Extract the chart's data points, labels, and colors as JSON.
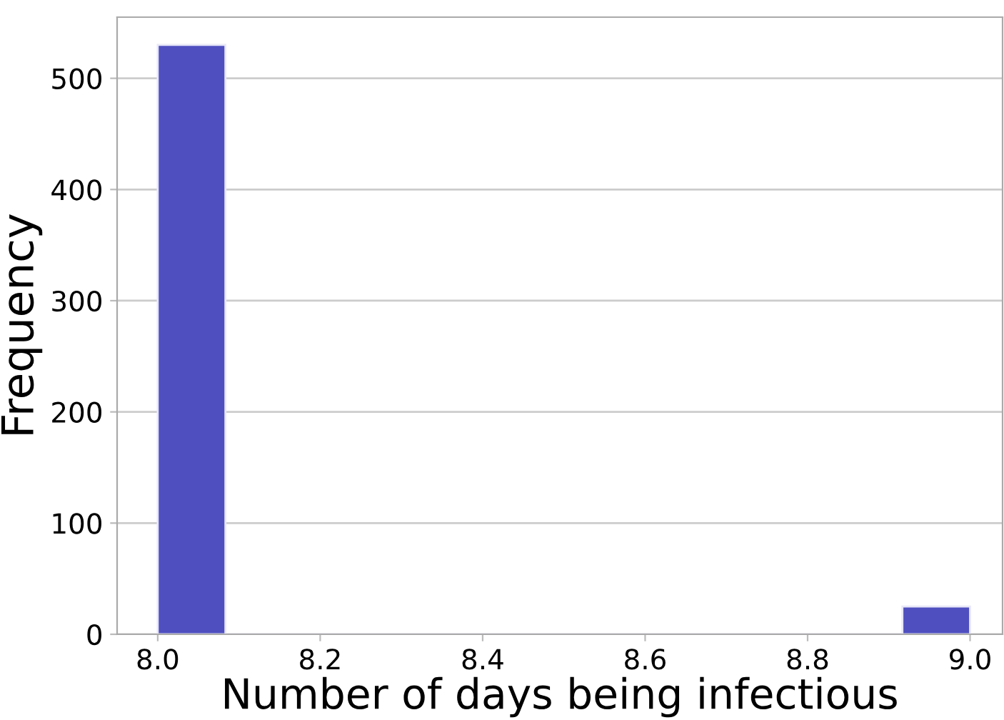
{
  "chart_data": {
    "type": "histogram",
    "xlabel": "Number of days being infectious",
    "ylabel": "Frequency",
    "bins": [
      8.0,
      8.0833,
      8.1667,
      8.25,
      8.3333,
      8.4167,
      8.5,
      8.5833,
      8.6667,
      8.75,
      8.8333,
      8.9167,
      9.0
    ],
    "values": [
      530,
      0,
      0,
      0,
      0,
      0,
      0,
      0,
      0,
      0,
      0,
      25
    ],
    "color": "#4f4fc0",
    "xlim": [
      7.95,
      9.04
    ],
    "xticks": [
      {
        "value": 8.0,
        "label": "8.0"
      },
      8.2,
      8.4,
      8.6,
      8.8,
      {
        "value": 9.0,
        "label": "9.0"
      }
    ],
    "ylim": [
      0,
      555
    ],
    "yticks": [
      0,
      100,
      200,
      300,
      400,
      500
    ],
    "grid": "y"
  }
}
